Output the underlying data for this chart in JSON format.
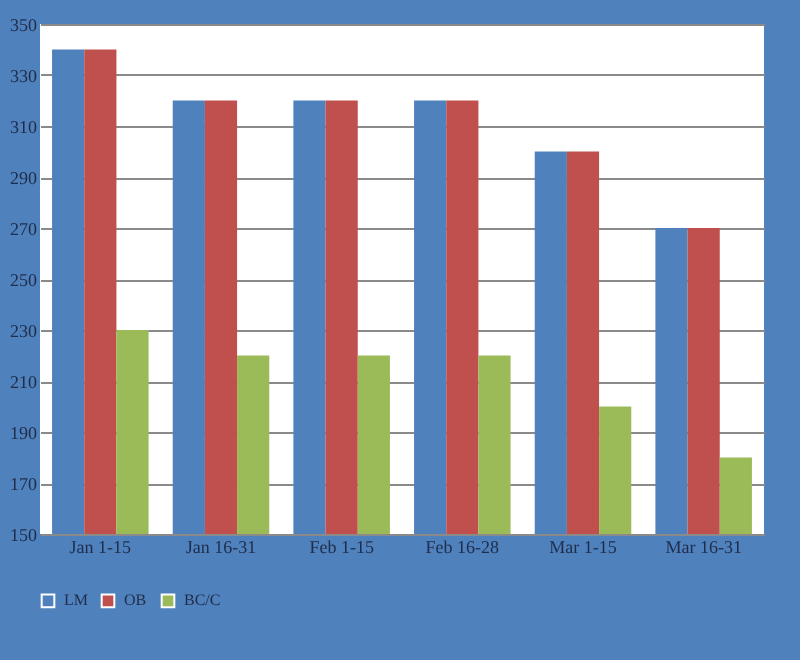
{
  "chart_data": {
    "type": "bar",
    "categories": [
      "Jan 1-15",
      "Jan 16-31",
      "Feb 1-15",
      "Feb 16-28",
      "Mar 1-15",
      "Mar 16-31"
    ],
    "series": [
      {
        "name": "LM",
        "color": "#4f81bd",
        "values": [
          340,
          320,
          320,
          320,
          300,
          270
        ]
      },
      {
        "name": "OB",
        "color": "#c0504d",
        "values": [
          340,
          320,
          320,
          320,
          300,
          270
        ]
      },
      {
        "name": "BC/C",
        "color": "#9bbb59",
        "values": [
          230,
          220,
          220,
          220,
          200,
          180
        ]
      }
    ],
    "ylim": [
      150,
      350
    ],
    "yticks": [
      150,
      170,
      190,
      210,
      230,
      250,
      270,
      290,
      310,
      330,
      350
    ],
    "grid": "y",
    "legend": "bottom"
  }
}
